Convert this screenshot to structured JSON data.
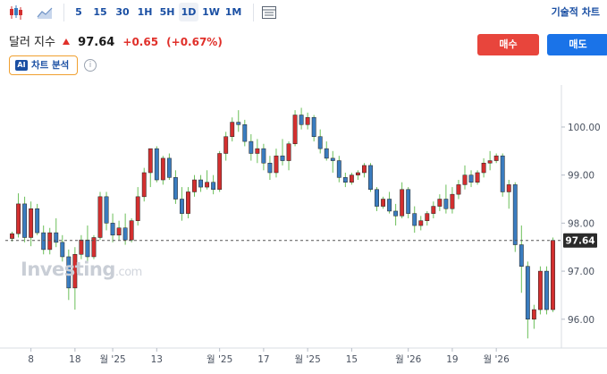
{
  "toolbar": {
    "intervals": [
      "5",
      "15",
      "30",
      "1H",
      "5H",
      "1D",
      "1W",
      "1M"
    ],
    "active_interval": "1D",
    "technical_chart_label": "기술적 차트"
  },
  "quote": {
    "name": "달러 지수",
    "price": "97.64",
    "change": "+0.65",
    "change_pct": "(+0.67%)"
  },
  "buttons": {
    "buy": "매수",
    "sell": "매도",
    "ai_badge": "AI",
    "ai_analysis": "차트 분석"
  },
  "colors": {
    "up": "#d32f2f",
    "down": "#3a7cbf",
    "up_button": "#e8453c",
    "down_button": "#1a73e8",
    "price_badge": "#2b2b2b"
  },
  "watermark": {
    "brand": "Investing",
    "suffix": ".com"
  },
  "chart_data": {
    "type": "candlestick",
    "current_price": 97.64,
    "ylim": [
      95.4,
      100.8
    ],
    "y_ticks": [
      96.0,
      97.0,
      98.0,
      99.0,
      100.0
    ],
    "y_tick_labels": [
      "96.00",
      "97.00",
      "98.00",
      "99.00",
      "100.00"
    ],
    "x_tick_labels": [
      "8",
      "18",
      "월 '25",
      "13",
      "월 '25",
      "17",
      "월 '25",
      "15",
      "월 '26",
      "19",
      "월 '26"
    ],
    "x_tick_index": [
      3,
      10,
      16,
      23,
      33,
      40,
      47,
      54,
      63,
      70,
      77
    ],
    "ohlc": [
      [
        97.68,
        97.82,
        97.62,
        97.78
      ],
      [
        97.78,
        98.62,
        97.7,
        98.4
      ],
      [
        98.4,
        98.55,
        97.6,
        97.7
      ],
      [
        97.7,
        98.45,
        97.52,
        98.3
      ],
      [
        98.3,
        98.4,
        97.75,
        97.8
      ],
      [
        97.8,
        97.95,
        97.35,
        97.45
      ],
      [
        97.45,
        97.9,
        97.35,
        97.8
      ],
      [
        97.8,
        98.1,
        97.5,
        97.6
      ],
      [
        97.6,
        97.75,
        97.2,
        97.3
      ],
      [
        97.3,
        97.45,
        96.4,
        96.65
      ],
      [
        96.65,
        97.5,
        96.2,
        97.35
      ],
      [
        97.35,
        97.75,
        97.25,
        97.65
      ],
      [
        97.65,
        97.95,
        97.2,
        97.3
      ],
      [
        97.3,
        97.75,
        97.25,
        97.7
      ],
      [
        97.7,
        98.65,
        97.65,
        98.55
      ],
      [
        98.55,
        98.65,
        97.85,
        98.0
      ],
      [
        98.0,
        98.2,
        97.6,
        97.75
      ],
      [
        97.75,
        98.05,
        97.65,
        97.9
      ],
      [
        97.9,
        98.2,
        97.55,
        97.65
      ],
      [
        97.65,
        98.1,
        97.6,
        98.05
      ],
      [
        98.05,
        98.75,
        97.95,
        98.55
      ],
      [
        98.55,
        99.15,
        98.45,
        99.05
      ],
      [
        99.05,
        99.55,
        98.75,
        99.55
      ],
      [
        99.55,
        99.6,
        98.85,
        98.9
      ],
      [
        98.9,
        99.4,
        98.8,
        99.35
      ],
      [
        99.35,
        99.45,
        98.9,
        98.95
      ],
      [
        98.95,
        99.1,
        98.4,
        98.5
      ],
      [
        98.5,
        98.75,
        98.05,
        98.2
      ],
      [
        98.2,
        98.75,
        98.1,
        98.65
      ],
      [
        98.65,
        99.0,
        98.55,
        98.9
      ],
      [
        98.9,
        99.0,
        98.65,
        98.75
      ],
      [
        98.75,
        99.1,
        98.7,
        98.85
      ],
      [
        98.85,
        99.0,
        98.6,
        98.7
      ],
      [
        98.7,
        99.5,
        98.65,
        99.45
      ],
      [
        99.45,
        99.9,
        99.3,
        99.8
      ],
      [
        99.8,
        100.2,
        99.7,
        100.1
      ],
      [
        100.1,
        100.35,
        99.9,
        100.05
      ],
      [
        100.05,
        100.15,
        99.6,
        99.7
      ],
      [
        99.7,
        99.85,
        99.3,
        99.45
      ],
      [
        99.45,
        99.75,
        99.25,
        99.55
      ],
      [
        99.55,
        99.65,
        99.1,
        99.25
      ],
      [
        99.25,
        99.4,
        98.9,
        99.05
      ],
      [
        99.05,
        99.55,
        98.95,
        99.4
      ],
      [
        99.4,
        99.75,
        99.2,
        99.3
      ],
      [
        99.3,
        99.7,
        99.1,
        99.65
      ],
      [
        99.65,
        100.35,
        99.6,
        100.25
      ],
      [
        100.25,
        100.4,
        99.95,
        100.05
      ],
      [
        100.05,
        100.3,
        99.95,
        100.2
      ],
      [
        100.2,
        100.25,
        99.7,
        99.8
      ],
      [
        99.8,
        99.95,
        99.45,
        99.55
      ],
      [
        99.55,
        99.7,
        99.3,
        99.35
      ],
      [
        99.35,
        99.5,
        99.05,
        99.3
      ],
      [
        99.3,
        99.4,
        98.85,
        98.95
      ],
      [
        98.95,
        99.05,
        98.75,
        98.85
      ],
      [
        98.85,
        99.05,
        98.8,
        99.0
      ],
      [
        99.0,
        99.1,
        98.9,
        99.05
      ],
      [
        99.05,
        99.25,
        98.95,
        99.2
      ],
      [
        99.2,
        99.25,
        98.65,
        98.7
      ],
      [
        98.7,
        98.75,
        98.25,
        98.35
      ],
      [
        98.35,
        98.55,
        98.3,
        98.5
      ],
      [
        98.5,
        98.65,
        98.2,
        98.25
      ],
      [
        98.25,
        98.4,
        97.95,
        98.15
      ],
      [
        98.15,
        98.85,
        98.1,
        98.7
      ],
      [
        98.7,
        98.75,
        98.1,
        98.2
      ],
      [
        98.2,
        98.35,
        97.8,
        97.95
      ],
      [
        97.95,
        98.15,
        97.85,
        98.05
      ],
      [
        98.05,
        98.25,
        97.95,
        98.2
      ],
      [
        98.2,
        98.45,
        98.1,
        98.35
      ],
      [
        98.35,
        98.6,
        98.25,
        98.5
      ],
      [
        98.5,
        98.8,
        98.2,
        98.3
      ],
      [
        98.3,
        98.75,
        98.2,
        98.6
      ],
      [
        98.6,
        98.9,
        98.5,
        98.8
      ],
      [
        98.8,
        99.2,
        98.7,
        99.0
      ],
      [
        99.0,
        99.1,
        98.75,
        98.85
      ],
      [
        98.85,
        99.1,
        98.8,
        99.05
      ],
      [
        99.05,
        99.35,
        98.95,
        99.25
      ],
      [
        99.25,
        99.5,
        99.1,
        99.3
      ],
      [
        99.3,
        99.45,
        99.25,
        99.4
      ],
      [
        99.4,
        99.45,
        98.55,
        98.65
      ],
      [
        98.65,
        98.9,
        98.3,
        98.8
      ],
      [
        98.8,
        98.85,
        97.4,
        97.55
      ],
      [
        97.55,
        97.95,
        96.55,
        97.1
      ],
      [
        97.1,
        97.2,
        95.6,
        96.0
      ],
      [
        96.0,
        96.3,
        95.8,
        96.2
      ],
      [
        96.2,
        97.1,
        96.1,
        97.0
      ],
      [
        97.0,
        97.1,
        96.1,
        96.2
      ],
      [
        96.2,
        97.7,
        96.15,
        97.64
      ]
    ]
  }
}
